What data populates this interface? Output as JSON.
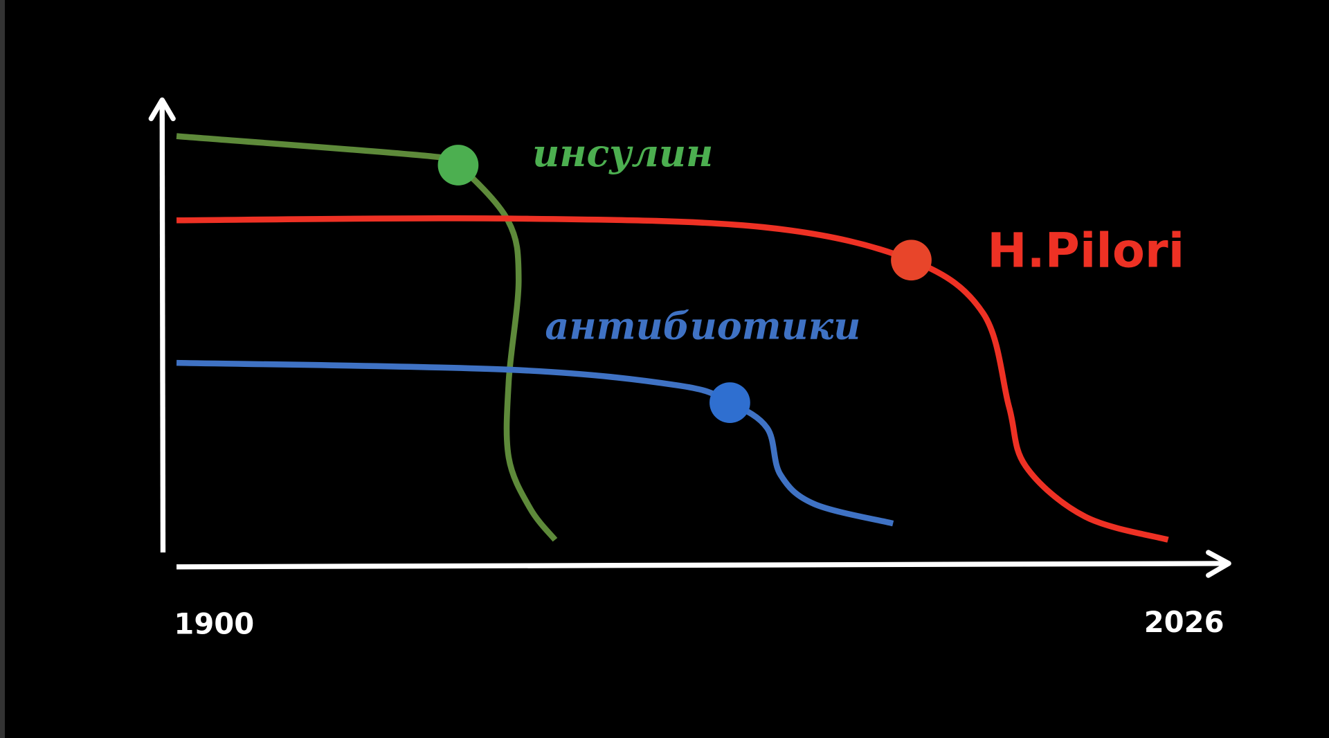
{
  "chart_data": {
    "type": "line",
    "title": "",
    "xlabel": "",
    "ylabel": "",
    "xlim": [
      1900,
      2026
    ],
    "ylim": [
      0,
      100
    ],
    "x_tick_labels": [
      "1900",
      "2026"
    ],
    "grid": false,
    "background": "#000000",
    "axis_color": "#ffffff",
    "series": [
      {
        "name": "инсулин",
        "color": "#5e8a3a",
        "marker_color": "#4caf50",
        "points": [
          [
            1900,
            92
          ],
          [
            1931,
            87.5
          ],
          [
            1934,
            85.6
          ],
          [
            1940,
            73.4
          ],
          [
            1941.3,
            60.3
          ],
          [
            1940.1,
            37.8
          ],
          [
            1940.1,
            21
          ],
          [
            1942.7,
            9.7
          ],
          [
            1945.7,
            2.8
          ]
        ],
        "marker": [
          1934,
          85.6
        ]
      },
      {
        "name": "H.Pilori",
        "color": "#ee3124",
        "marker_color": "#e8452a",
        "points": [
          [
            1900,
            73.4
          ],
          [
            1940.1,
            73.8
          ],
          [
            1970.8,
            71.9
          ],
          [
            1988.7,
            64.6
          ],
          [
            1997.4,
            52.8
          ],
          [
            2000.5,
            32.2
          ],
          [
            2002.5,
            19.1
          ],
          [
            2009.7,
            7.9
          ],
          [
            2019.7,
            2.8
          ]
        ],
        "marker": [
          1988.7,
          64.6
        ]
      },
      {
        "name": "антибиотики",
        "color": "#3f72c4",
        "marker_color": "#2f6fd0",
        "points": [
          [
            1900,
            41.9
          ],
          [
            1940.1,
            40.4
          ],
          [
            1960.6,
            36.9
          ],
          [
            1966.8,
            33.1
          ],
          [
            1971.3,
            27.5
          ],
          [
            1972.9,
            17.2
          ],
          [
            1977,
            10.7
          ],
          [
            1986.5,
            6.4
          ]
        ],
        "marker": [
          1966.8,
          33.1
        ]
      }
    ]
  }
}
